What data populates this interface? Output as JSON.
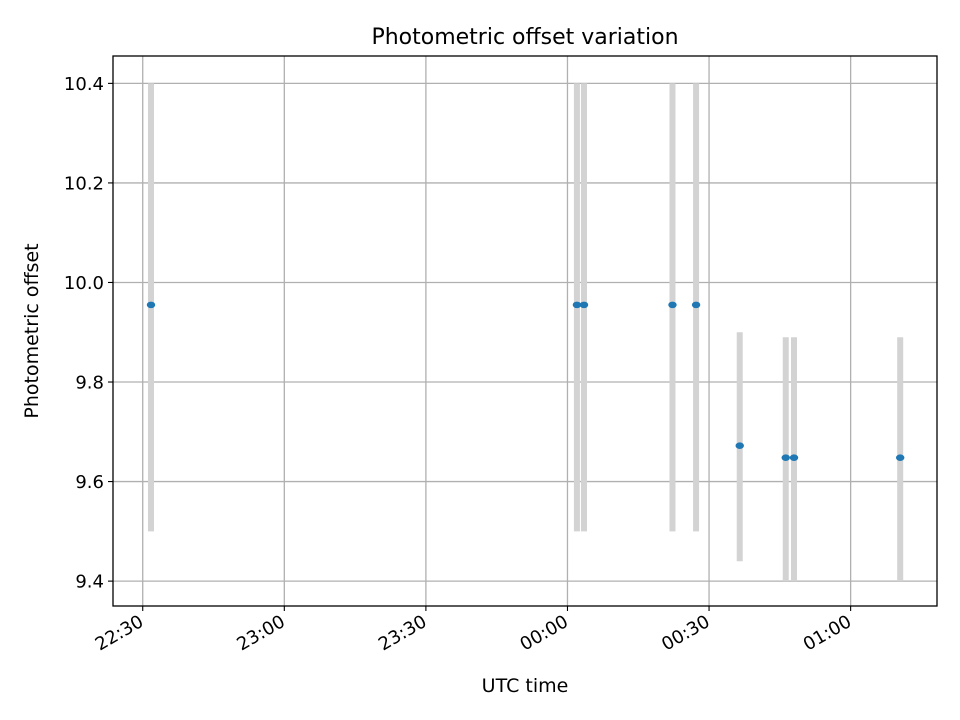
{
  "chart_data": {
    "type": "scatter",
    "title": "Photometric offset variation",
    "xlabel": "UTC time",
    "ylabel": "Photometric offset",
    "x_tick_labels": [
      "22:30",
      "23:00",
      "23:30",
      "00:00",
      "00:30",
      "01:00"
    ],
    "x_tick_minutes": [
      0,
      30,
      60,
      90,
      120,
      150
    ],
    "xlim_minutes": [
      -6.3,
      168.3
    ],
    "y_ticks": [
      9.4,
      9.6,
      9.8,
      10.0,
      10.2,
      10.4
    ],
    "y_tick_labels": [
      "9.4",
      "9.6",
      "9.8",
      "10.0",
      "10.2",
      "10.4"
    ],
    "ylim": [
      9.35,
      10.455
    ],
    "grid": true,
    "legend": "none",
    "points": [
      {
        "time": "22:31:45",
        "y": 9.955,
        "err_low": 9.5,
        "err_high": 10.4
      },
      {
        "time": "00:02:00",
        "y": 9.955,
        "err_low": 9.5,
        "err_high": 10.4
      },
      {
        "time": "00:03:30",
        "y": 9.955,
        "err_low": 9.5,
        "err_high": 10.4
      },
      {
        "time": "00:22:15",
        "y": 9.955,
        "err_low": 9.5,
        "err_high": 10.4
      },
      {
        "time": "00:27:15",
        "y": 9.955,
        "err_low": 9.5,
        "err_high": 10.4
      },
      {
        "time": "00:36:30",
        "y": 9.672,
        "err_low": 9.44,
        "err_high": 9.9
      },
      {
        "time": "00:46:15",
        "y": 9.648,
        "err_low": 9.4,
        "err_high": 9.89
      },
      {
        "time": "00:48:00",
        "y": 9.648,
        "err_low": 9.4,
        "err_high": 9.89
      },
      {
        "time": "01:10:30",
        "y": 9.648,
        "err_low": 9.4,
        "err_high": 9.89
      }
    ],
    "colors": {
      "marker": "#1f77b4",
      "errorbar": "#d3d3d3",
      "grid": "#b0b0b0",
      "axes": "#000000"
    }
  }
}
